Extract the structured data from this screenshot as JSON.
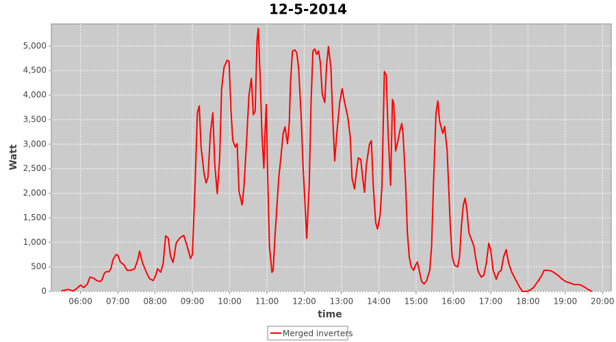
{
  "chart_data": {
    "type": "line",
    "title": "12-5-2014",
    "x_label": "time",
    "y_label": "Watt",
    "xlim": [
      "05:13",
      "20:14"
    ],
    "xticks": [
      "06:00",
      "07:00",
      "08:00",
      "09:00",
      "10:00",
      "11:00",
      "12:00",
      "13:00",
      "14:00",
      "15:00",
      "16:00",
      "17:00",
      "18:00",
      "19:00",
      "20:00"
    ],
    "ylim": [
      0,
      5450
    ],
    "yticks": [
      0,
      500,
      {
        "value": 1000,
        "label": "1,000"
      },
      {
        "value": 1500,
        "label": "1,500"
      },
      {
        "value": 2000,
        "label": "2,000"
      },
      {
        "value": 2500,
        "label": "2,500"
      },
      {
        "value": 3000,
        "label": "3,000"
      },
      {
        "value": 3500,
        "label": "3,500"
      },
      {
        "value": 4000,
        "label": "4,000"
      },
      {
        "value": 4500,
        "label": "4,500"
      },
      {
        "value": 5000,
        "label": "5,000"
      }
    ],
    "grid": true,
    "legend": "bottom",
    "background": "#cbcbcb",
    "x": [
      "05:29",
      "05:40",
      "05:48",
      "05:54",
      "06:00",
      "06:05",
      "06:11",
      "06:15",
      "06:21",
      "06:26",
      "06:32",
      "06:35",
      "06:38",
      "06:41",
      "06:46",
      "06:49",
      "06:52",
      "06:57",
      "07:00",
      "07:04",
      "07:10",
      "07:15",
      "07:21",
      "07:27",
      "07:32",
      "07:35",
      "07:40",
      "07:46",
      "07:51",
      "07:57",
      "08:01",
      "08:04",
      "08:09",
      "08:13",
      "08:17",
      "08:21",
      "08:25",
      "08:29",
      "08:34",
      "08:40",
      "08:46",
      "08:51",
      "08:57",
      "09:00",
      "09:04",
      "09:08",
      "09:11",
      "09:14",
      "09:19",
      "09:22",
      "09:25",
      "09:29",
      "09:33",
      "09:36",
      "09:40",
      "09:44",
      "09:47",
      "09:51",
      "09:56",
      "09:59",
      "10:02",
      "10:05",
      "10:09",
      "10:12",
      "10:15",
      "10:20",
      "10:23",
      "10:27",
      "10:31",
      "10:35",
      "10:38",
      "10:41",
      "10:44",
      "10:46",
      "10:49",
      "10:52",
      "10:55",
      "10:57",
      "10:59",
      "11:01",
      "11:04",
      "11:08",
      "11:10",
      "11:13",
      "11:19",
      "11:23",
      "11:26",
      "11:29",
      "11:33",
      "11:36",
      "11:38",
      "11:41",
      "11:45",
      "11:48",
      "11:51",
      "11:55",
      "11:58",
      "12:02",
      "12:04",
      "12:08",
      "12:11",
      "12:14",
      "12:17",
      "12:20",
      "12:23",
      "12:26",
      "12:29",
      "12:33",
      "12:36",
      "12:39",
      "12:43",
      "12:46",
      "12:49",
      "12:52",
      "12:57",
      "13:01",
      "13:05",
      "13:10",
      "13:14",
      "13:17",
      "13:21",
      "13:24",
      "13:27",
      "13:31",
      "13:34",
      "13:37",
      "13:40",
      "13:45",
      "13:48",
      "13:51",
      "13:55",
      "13:58",
      "14:02",
      "14:05",
      "14:09",
      "14:12",
      "14:15",
      "14:19",
      "14:22",
      "14:24",
      "14:27",
      "14:31",
      "14:34",
      "14:37",
      "14:39",
      "14:43",
      "14:46",
      "14:49",
      "14:52",
      "14:56",
      "14:59",
      "15:02",
      "15:05",
      "15:09",
      "15:13",
      "15:17",
      "15:22",
      "15:25",
      "15:28",
      "15:32",
      "15:35",
      "15:38",
      "15:43",
      "15:46",
      "15:50",
      "15:55",
      "15:58",
      "16:02",
      "16:07",
      "16:10",
      "16:13",
      "16:16",
      "16:19",
      "16:22",
      "16:25",
      "16:29",
      "16:33",
      "16:36",
      "16:40",
      "16:45",
      "16:49",
      "16:53",
      "16:57",
      "17:00",
      "17:04",
      "17:09",
      "17:13",
      "17:17",
      "17:21",
      "17:25",
      "17:29",
      "17:34",
      "17:38",
      "17:43",
      "17:47",
      "17:51",
      "17:58",
      "18:04",
      "18:09",
      "18:13",
      "18:17",
      "18:22",
      "18:26",
      "18:31",
      "18:37",
      "18:41",
      "18:48",
      "18:55",
      "19:01",
      "19:08",
      "19:14",
      "19:21",
      "19:25",
      "19:32",
      "19:38",
      "19:43"
    ],
    "series": [
      {
        "name": "Merged inverters",
        "color": "#ff0000",
        "values": [
          10,
          40,
          10,
          60,
          130,
          80,
          150,
          290,
          270,
          220,
          200,
          250,
          360,
          400,
          400,
          470,
          640,
          750,
          740,
          600,
          540,
          430,
          430,
          460,
          640,
          820,
          570,
          390,
          260,
          220,
          330,
          460,
          390,
          570,
          1130,
          1090,
          710,
          590,
          990,
          1090,
          1140,
          950,
          670,
          750,
          2040,
          3640,
          3780,
          2940,
          2390,
          2210,
          2320,
          3220,
          3640,
          2590,
          1990,
          2730,
          4130,
          4570,
          4710,
          4690,
          3710,
          3080,
          2940,
          3010,
          2040,
          1760,
          2120,
          3010,
          3990,
          4340,
          3600,
          3670,
          5100,
          5360,
          4410,
          3170,
          2510,
          3260,
          3810,
          2430,
          920,
          390,
          430,
          1130,
          2320,
          2800,
          3210,
          3350,
          3010,
          3440,
          4270,
          4900,
          4920,
          4860,
          4550,
          3570,
          2580,
          1600,
          1080,
          2180,
          3850,
          4900,
          4940,
          4830,
          4900,
          4660,
          4020,
          3850,
          4620,
          4990,
          4550,
          3490,
          2660,
          3150,
          3850,
          4130,
          3850,
          3560,
          3150,
          2300,
          2090,
          2440,
          2720,
          2690,
          2330,
          2020,
          2580,
          3000,
          3070,
          2160,
          1400,
          1270,
          1550,
          2120,
          4480,
          4410,
          3220,
          2160,
          3910,
          3840,
          2860,
          3080,
          3280,
          3420,
          3210,
          2230,
          1200,
          710,
          500,
          430,
          530,
          600,
          430,
          200,
          150,
          220,
          430,
          920,
          2170,
          3630,
          3880,
          3460,
          3220,
          3360,
          2870,
          1340,
          710,
          530,
          500,
          710,
          1340,
          1760,
          1900,
          1620,
          1200,
          1060,
          920,
          670,
          400,
          290,
          330,
          570,
          980,
          850,
          430,
          250,
          390,
          430,
          710,
          850,
          570,
          390,
          290,
          170,
          80,
          0,
          0,
          30,
          80,
          150,
          220,
          320,
          430,
          430,
          420,
          390,
          330,
          250,
          200,
          170,
          140,
          140,
          130,
          80,
          30,
          0
        ]
      }
    ]
  }
}
